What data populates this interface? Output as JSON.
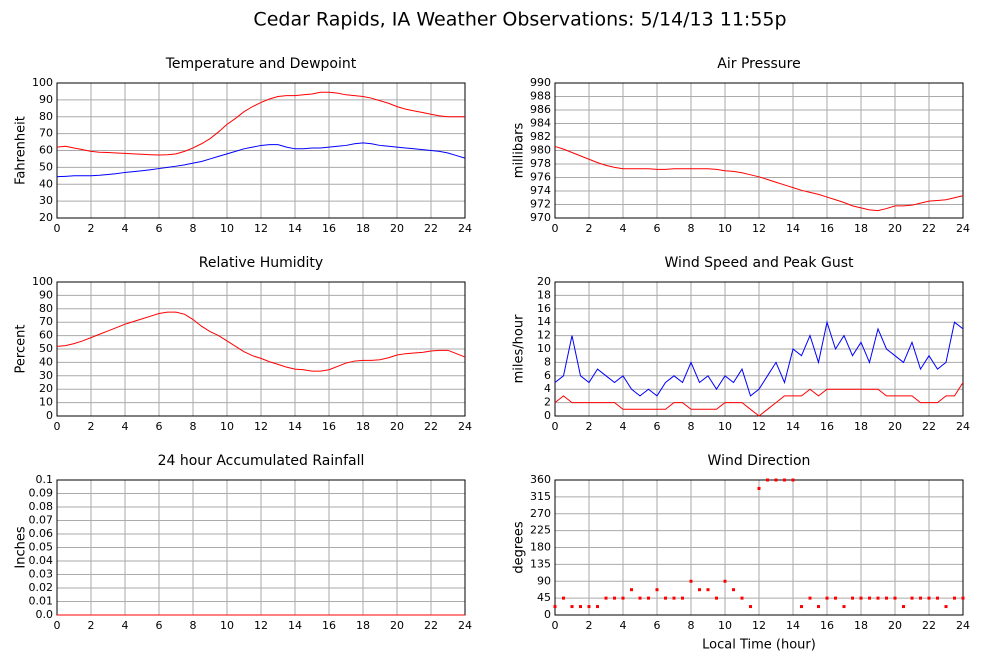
{
  "title": "Cedar Rapids, IA Weather Observations: 5/14/13 11:55p",
  "chart_data": [
    {
      "type": "line",
      "title": "Temperature and Dewpoint",
      "ylabel": "Fahrenheit",
      "x": [
        0,
        0.5,
        1,
        1.5,
        2,
        2.5,
        3,
        3.5,
        4,
        4.5,
        5,
        5.5,
        6,
        6.5,
        7,
        7.5,
        8,
        8.5,
        9,
        9.5,
        10,
        10.5,
        11,
        11.5,
        12,
        12.5,
        13,
        13.5,
        14,
        14.5,
        15,
        15.5,
        16,
        16.5,
        17,
        17.5,
        18,
        18.5,
        19,
        19.5,
        20,
        20.5,
        21,
        21.5,
        22,
        22.5,
        23,
        23.5,
        24
      ],
      "series": [
        {
          "color": "#ff0000",
          "values": [
            62,
            62.5,
            61.5,
            60.5,
            59.5,
            59,
            58.8,
            58.5,
            58.3,
            58,
            57.8,
            57.5,
            57.3,
            57.5,
            58,
            59.5,
            61.5,
            64,
            67,
            71,
            75.5,
            79,
            83,
            86,
            88.5,
            90.5,
            92,
            92.5,
            92.5,
            93,
            93.5,
            94.5,
            94.5,
            94,
            93,
            92.5,
            92,
            91,
            89.5,
            88,
            86,
            84.5,
            83.5,
            82.5,
            81.5,
            80.5,
            80,
            80,
            80
          ]
        },
        {
          "color": "#0000ff",
          "values": [
            44.5,
            44.7,
            45,
            45,
            45,
            45.3,
            45.8,
            46.3,
            47,
            47.5,
            48,
            48.6,
            49.3,
            50,
            50.7,
            51.5,
            52.5,
            53.5,
            55,
            56.5,
            58,
            59.5,
            61,
            62,
            63,
            63.5,
            63.5,
            62,
            61,
            61,
            61.5,
            61.5,
            62,
            62.5,
            63,
            64,
            64.5,
            64,
            63,
            62.5,
            62,
            61.5,
            61,
            60.5,
            60,
            59.5,
            58.5,
            57,
            55.5
          ]
        }
      ],
      "xlim": [
        0,
        24
      ],
      "xticks": [
        0,
        2,
        4,
        6,
        8,
        10,
        12,
        14,
        16,
        18,
        20,
        22,
        24
      ],
      "ylim": [
        20,
        100
      ],
      "yticks": [
        20,
        30,
        40,
        50,
        60,
        70,
        80,
        90,
        100
      ],
      "grid": true
    },
    {
      "type": "line",
      "title": "Air Pressure",
      "ylabel": "millibars",
      "x": [
        0,
        0.5,
        1,
        1.5,
        2,
        2.5,
        3,
        3.5,
        4,
        4.5,
        5,
        5.5,
        6,
        6.5,
        7,
        7.5,
        8,
        8.5,
        9,
        9.5,
        10,
        10.5,
        11,
        11.5,
        12,
        12.5,
        13,
        13.5,
        14,
        14.5,
        15,
        15.5,
        16,
        16.5,
        17,
        17.5,
        18,
        18.5,
        19,
        19.5,
        20,
        20.5,
        21,
        21.5,
        22,
        22.5,
        23,
        23.5,
        24
      ],
      "series": [
        {
          "color": "#ff0000",
          "values": [
            980.6,
            980.2,
            979.7,
            979.2,
            978.7,
            978.2,
            977.8,
            977.5,
            977.3,
            977.3,
            977.3,
            977.3,
            977.2,
            977.2,
            977.3,
            977.3,
            977.3,
            977.3,
            977.3,
            977.2,
            977,
            976.9,
            976.7,
            976.4,
            976.1,
            975.7,
            975.3,
            974.9,
            974.5,
            974.1,
            973.8,
            973.5,
            973.1,
            972.7,
            972.3,
            971.8,
            971.5,
            971.2,
            971.1,
            971.4,
            971.8,
            971.8,
            971.9,
            972.2,
            972.5,
            972.6,
            972.7,
            973,
            973.3
          ]
        }
      ],
      "xlim": [
        0,
        24
      ],
      "xticks": [
        0,
        2,
        4,
        6,
        8,
        10,
        12,
        14,
        16,
        18,
        20,
        22,
        24
      ],
      "ylim": [
        970,
        990
      ],
      "yticks": [
        970,
        972,
        974,
        976,
        978,
        980,
        982,
        984,
        986,
        988,
        990
      ],
      "grid": true
    },
    {
      "type": "line",
      "title": "Relative Humidity",
      "ylabel": "Percent",
      "x": [
        0,
        0.5,
        1,
        1.5,
        2,
        2.5,
        3,
        3.5,
        4,
        4.5,
        5,
        5.5,
        6,
        6.5,
        7,
        7.5,
        8,
        8.5,
        9,
        9.5,
        10,
        10.5,
        11,
        11.5,
        12,
        12.5,
        13,
        13.5,
        14,
        14.5,
        15,
        15.5,
        16,
        16.5,
        17,
        17.5,
        18,
        18.5,
        19,
        19.5,
        20,
        20.5,
        21,
        21.5,
        22,
        22.5,
        23,
        23.5,
        24
      ],
      "series": [
        {
          "color": "#ff0000",
          "values": [
            52,
            52.5,
            54,
            56,
            58.5,
            61,
            63.5,
            66,
            68.5,
            70.5,
            72.5,
            74.5,
            76.5,
            77.5,
            77.5,
            76,
            72,
            67,
            63,
            60,
            56,
            52,
            48,
            45,
            43,
            40.5,
            38.5,
            36.5,
            35,
            34.5,
            33.5,
            33.5,
            34.5,
            37,
            39.5,
            41,
            41.5,
            41.5,
            42,
            43.5,
            45.5,
            46.5,
            47,
            47.5,
            48.5,
            49,
            49,
            46.5,
            44
          ]
        }
      ],
      "xlim": [
        0,
        24
      ],
      "xticks": [
        0,
        2,
        4,
        6,
        8,
        10,
        12,
        14,
        16,
        18,
        20,
        22,
        24
      ],
      "ylim": [
        0,
        100
      ],
      "yticks": [
        0,
        10,
        20,
        30,
        40,
        50,
        60,
        70,
        80,
        90,
        100
      ],
      "grid": true
    },
    {
      "type": "line",
      "title": "Wind Speed and Peak Gust",
      "ylabel": "miles/hour",
      "x": [
        0,
        0.5,
        1,
        1.5,
        2,
        2.5,
        3,
        3.5,
        4,
        4.5,
        5,
        5.5,
        6,
        6.5,
        7,
        7.5,
        8,
        8.5,
        9,
        9.5,
        10,
        10.5,
        11,
        11.5,
        12,
        12.5,
        13,
        13.5,
        14,
        14.5,
        15,
        15.5,
        16,
        16.5,
        17,
        17.5,
        18,
        18.5,
        19,
        19.5,
        20,
        20.5,
        21,
        21.5,
        22,
        22.5,
        23,
        23.5,
        24
      ],
      "series": [
        {
          "color": "#0000ff",
          "values": [
            5,
            6,
            12,
            6,
            5,
            7,
            6,
            5,
            6,
            4,
            3,
            4,
            3,
            5,
            6,
            5,
            8,
            5,
            6,
            4,
            6,
            5,
            7,
            3,
            4,
            6,
            8,
            5,
            10,
            9,
            12,
            8,
            14,
            10,
            12,
            9,
            11,
            8,
            13,
            10,
            9,
            8,
            11,
            7,
            9,
            7,
            8,
            14,
            13
          ]
        },
        {
          "color": "#ff0000",
          "values": [
            2,
            3,
            2,
            2,
            2,
            2,
            2,
            2,
            1,
            1,
            1,
            1,
            1,
            1,
            2,
            2,
            1,
            1,
            1,
            1,
            2,
            2,
            2,
            1,
            0,
            1,
            2,
            3,
            3,
            3,
            4,
            3,
            4,
            4,
            4,
            4,
            4,
            4,
            4,
            3,
            3,
            3,
            3,
            2,
            2,
            2,
            3,
            3,
            5
          ]
        }
      ],
      "xlim": [
        0,
        24
      ],
      "xticks": [
        0,
        2,
        4,
        6,
        8,
        10,
        12,
        14,
        16,
        18,
        20,
        22,
        24
      ],
      "ylim": [
        0,
        20
      ],
      "yticks": [
        0,
        2,
        4,
        6,
        8,
        10,
        12,
        14,
        16,
        18,
        20
      ],
      "grid": true
    },
    {
      "type": "line",
      "title": "24 hour Accumulated Rainfall",
      "ylabel": "Inches",
      "x": [
        0,
        24
      ],
      "series": [
        {
          "color": "#ff0000",
          "values": [
            0,
            0
          ]
        }
      ],
      "xlim": [
        0,
        24
      ],
      "xticks": [
        0,
        2,
        4,
        6,
        8,
        10,
        12,
        14,
        16,
        18,
        20,
        22,
        24
      ],
      "ylim": [
        0,
        0.1
      ],
      "yticks": [
        {
          "value": 0,
          "label": "0.0"
        },
        0.01,
        0.02,
        0.03,
        0.04,
        0.05,
        0.06,
        0.07,
        0.08,
        0.09,
        0.1
      ],
      "grid": true
    },
    {
      "type": "scatter",
      "title": "Wind Direction",
      "ylabel": "degrees",
      "xlabel": "Local Time (hour)",
      "x": [
        0,
        0.5,
        1,
        1.5,
        2,
        2.5,
        3,
        3.5,
        4,
        4.5,
        5,
        5.5,
        6,
        6.5,
        7,
        7.5,
        8,
        8.5,
        9,
        9.5,
        10,
        10.5,
        11,
        11.5,
        12,
        12.5,
        13,
        13.5,
        14,
        14.5,
        15,
        15.5,
        16,
        16.5,
        17,
        17.5,
        18,
        18.5,
        19,
        19.5,
        20,
        20.5,
        21,
        21.5,
        22,
        22.5,
        23,
        23.5,
        24
      ],
      "series": [
        {
          "color": "#ff0000",
          "values": [
            22.5,
            45,
            22.5,
            22.5,
            22.5,
            22.5,
            45,
            45,
            45,
            67.5,
            45,
            45,
            67.5,
            45,
            45,
            45,
            90,
            67.5,
            67.5,
            45,
            90,
            67.5,
            45,
            22.5,
            337.5,
            360,
            360,
            360,
            360,
            22.5,
            45,
            22.5,
            45,
            45,
            22.5,
            45,
            45,
            45,
            45,
            45,
            45,
            22.5,
            45,
            45,
            45,
            45,
            22.5,
            45,
            45
          ]
        }
      ],
      "xlim": [
        0,
        24
      ],
      "xticks": [
        0,
        2,
        4,
        6,
        8,
        10,
        12,
        14,
        16,
        18,
        20,
        22,
        24
      ],
      "ylim": [
        0,
        360
      ],
      "yticks": [
        0,
        45,
        90,
        135,
        180,
        225,
        270,
        315,
        360
      ],
      "grid": true
    }
  ]
}
